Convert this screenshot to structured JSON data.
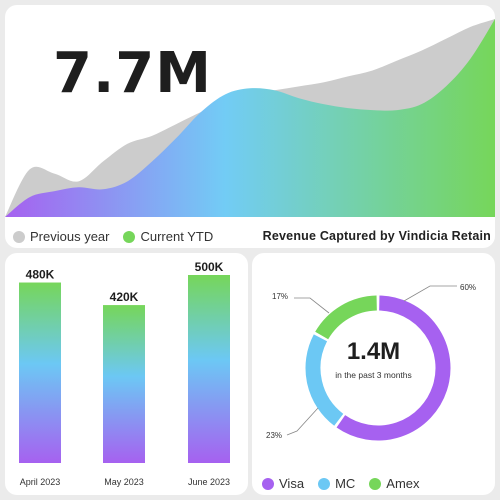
{
  "headline": {
    "value": "7.7M"
  },
  "top_legend": [
    {
      "label": "Previous year",
      "color": "#cccccc"
    },
    {
      "label": "Current YTD",
      "color": "#76d65a"
    }
  ],
  "top_title": "Revenue Captured by Vindicia Retain",
  "chart_data": [
    {
      "type": "area",
      "title": "Revenue Captured by Vindicia Retain",
      "x": [
        0,
        1,
        2,
        3,
        4,
        5,
        6,
        7,
        8,
        9,
        10,
        11,
        12,
        13,
        14,
        15,
        16,
        17,
        18,
        19,
        20
      ],
      "ylim": [
        0,
        100
      ],
      "series": [
        {
          "name": "Previous year",
          "color": "#cccccc",
          "values": [
            0,
            24,
            22,
            18,
            28,
            37,
            41,
            47,
            53,
            58,
            62,
            64,
            66,
            68,
            71,
            74,
            79,
            84,
            90,
            96,
            100
          ]
        },
        {
          "name": "Current YTD",
          "color": "#76d65a",
          "values": [
            0,
            10,
            13,
            15,
            14,
            18,
            28,
            40,
            53,
            62,
            65,
            64,
            60,
            57,
            55,
            54,
            54,
            57,
            66,
            80,
            100
          ]
        }
      ]
    },
    {
      "type": "bar",
      "categories": [
        "April 2023",
        "May 2023",
        "June 2023"
      ],
      "values": [
        480,
        420,
        500
      ],
      "value_labels": [
        "480K",
        "420K",
        "500K"
      ],
      "ylim": [
        0,
        500
      ]
    },
    {
      "type": "pie",
      "style": "donut",
      "labels": [
        "Visa",
        "MC",
        "Amex"
      ],
      "values": [
        60,
        23,
        17
      ],
      "value_labels": [
        "60%",
        "23%",
        "17%"
      ],
      "colors": [
        "#a661f0",
        "#6cc8f4",
        "#76d65a"
      ],
      "center_value": "1.4M",
      "center_caption": "in the past 3 months"
    }
  ],
  "donut_legend": [
    {
      "label": "Visa",
      "color": "#a661f0"
    },
    {
      "label": "MC",
      "color": "#6cc8f4"
    },
    {
      "label": "Amex",
      "color": "#76d65a"
    }
  ]
}
